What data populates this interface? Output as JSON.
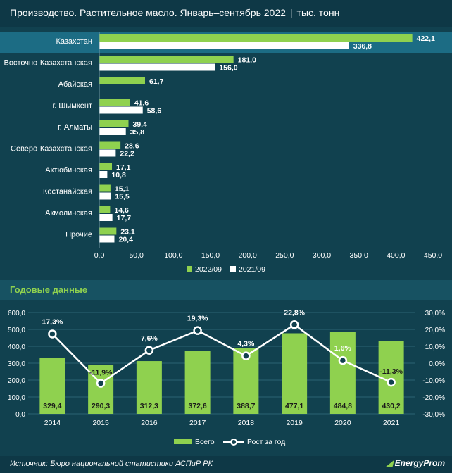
{
  "header": {
    "title": "Производство. Растительное масло. Январь–сентябрь 2022",
    "unit": "тыс. тонн"
  },
  "colors": {
    "bar_2022": "#8fd14f",
    "bar_2021": "#ffffff",
    "highlight_row": "#1c6c84",
    "annual_bar": "#8fd14f",
    "growth_line": "#ffffff"
  },
  "chart_data": [
    {
      "type": "bar",
      "orientation": "horizontal",
      "categories": [
        "Казахстан",
        "Восточно-Казахстанская",
        "Абайская",
        "г. Шымкент",
        "г. Алматы",
        "Северо-Казахстанская",
        "Актюбинская",
        "Костанайская",
        "Акмолинская",
        "Прочие"
      ],
      "series": [
        {
          "name": "2022/09",
          "values": [
            422.1,
            181.0,
            61.7,
            41.6,
            39.4,
            28.6,
            17.1,
            15.1,
            14.6,
            23.1
          ],
          "labels": [
            "422,1",
            "181,0",
            "61,7",
            "41,6",
            "39,4",
            "28,6",
            "17,1",
            "15,1",
            "14,6",
            "23,1"
          ]
        },
        {
          "name": "2021/09",
          "values": [
            336.8,
            156.0,
            null,
            58.6,
            35.8,
            22.2,
            10.8,
            15.5,
            17.7,
            20.4
          ],
          "labels": [
            "336,8",
            "156,0",
            "",
            "58,6",
            "35,8",
            "22,2",
            "10,8",
            "15,5",
            "17,7",
            "20,4"
          ]
        }
      ],
      "xlim": [
        0,
        450
      ],
      "x_ticks": [
        "0,0",
        "50,0",
        "100,0",
        "150,0",
        "200,0",
        "250,0",
        "300,0",
        "350,0",
        "400,0",
        "450,0"
      ],
      "highlighted_category": "Казахстан",
      "legend": [
        "2022/09",
        "2021/09"
      ],
      "legend_position": "bottom"
    },
    {
      "type": "bar",
      "title": "Годовые данные",
      "categories": [
        "2014",
        "2015",
        "2016",
        "2017",
        "2018",
        "2019",
        "2020",
        "2021"
      ],
      "series": [
        {
          "name": "Всего",
          "type": "bar",
          "axis": "left",
          "values": [
            329.4,
            290.3,
            312.3,
            372.6,
            388.7,
            477.1,
            484.8,
            430.2
          ],
          "labels": [
            "329,4",
            "290,3",
            "312,3",
            "372,6",
            "388,7",
            "477,1",
            "484,8",
            "430,2"
          ]
        },
        {
          "name": "Рост за год",
          "type": "line",
          "axis": "right",
          "values": [
            17.3,
            -11.9,
            7.6,
            19.3,
            4.3,
            22.8,
            1.6,
            -11.3
          ],
          "labels": [
            "17,3%",
            "-11,9%",
            "7,6%",
            "19,3%",
            "4,3%",
            "22,8%",
            "1,6%",
            "-11,3%"
          ]
        }
      ],
      "ylim_left": [
        0,
        600
      ],
      "y_ticks_left": [
        "0,0",
        "100,0",
        "200,0",
        "300,0",
        "400,0",
        "500,0",
        "600,0"
      ],
      "ylim_right": [
        -30,
        30
      ],
      "y_ticks_right": [
        "-30,0%",
        "-20,0%",
        "-10,0%",
        "0,0%",
        "10,0%",
        "20,0%",
        "30,0%"
      ],
      "grid": true,
      "legend": [
        "Всего",
        "Рост за год"
      ],
      "legend_position": "bottom"
    }
  ],
  "footer": {
    "source": "Источник: Бюро национальной статистики АСПиР РК",
    "logo": "EnergyProm"
  }
}
